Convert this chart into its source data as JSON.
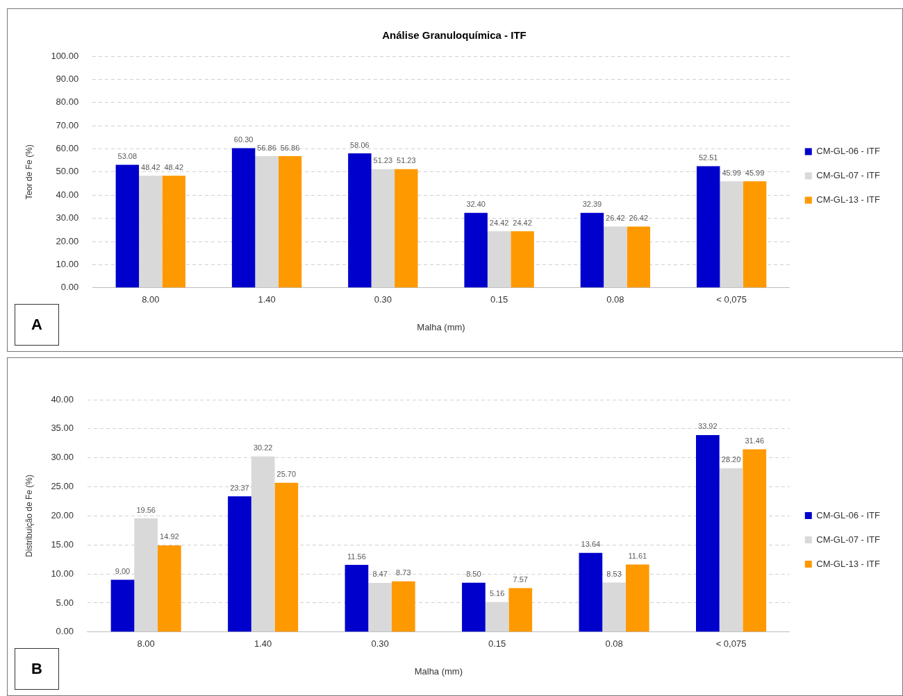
{
  "chart_data": [
    {
      "type": "bar",
      "title": "Análise Granuloquímica - ITF",
      "xlabel": "Malha (mm)",
      "ylabel": "Teor de Fe (%)",
      "categories": [
        "8.00",
        "1.40",
        "0.30",
        "0.15",
        "0.08",
        "< 0,075"
      ],
      "series": [
        {
          "name": "CM-GL-06 - ITF",
          "color": "#0000cc",
          "values": [
            53.08,
            60.3,
            58.06,
            32.4,
            32.39,
            52.51
          ],
          "value_labels": [
            "53.08",
            "60.30",
            "58.06",
            "32.40",
            "32.39",
            "52.51"
          ]
        },
        {
          "name": "CM-GL-07 - ITF",
          "color": "#d9d9d9",
          "values": [
            48.42,
            56.86,
            51.23,
            24.42,
            26.42,
            45.99
          ],
          "value_labels": [
            "48.42",
            "56.86",
            "51.23",
            "24.42",
            "26.42",
            "45.99"
          ]
        },
        {
          "name": "CM-GL-13 - ITF",
          "color": "#ff9900",
          "values": [
            48.42,
            56.86,
            51.23,
            24.42,
            26.42,
            45.99
          ],
          "value_labels": [
            "48.42",
            "56.86",
            "51.23",
            "24.42",
            "26.42",
            "45.99"
          ]
        }
      ],
      "ylim": [
        0,
        100
      ],
      "yticks": [
        {
          "value": 0,
          "label": "0.00"
        },
        {
          "value": 10,
          "label": "10.00"
        },
        {
          "value": 20,
          "label": "20.00"
        },
        {
          "value": 30,
          "label": "30.00"
        },
        {
          "value": 40,
          "label": "40.00"
        },
        {
          "value": 50,
          "label": "50.00"
        },
        {
          "value": 60,
          "label": "60.00"
        },
        {
          "value": 70,
          "label": "70.00"
        },
        {
          "value": 80,
          "label": "80.00"
        },
        {
          "value": 90,
          "label": "90.00"
        },
        {
          "value": 100,
          "label": "100.00"
        }
      ],
      "grid": "y",
      "legend": "right",
      "annotations": [
        "A"
      ]
    },
    {
      "type": "bar",
      "xlabel": "Malha (mm)",
      "ylabel": "Distribuição de Fe (%)",
      "categories": [
        "8.00",
        "1.40",
        "0.30",
        "0.15",
        "0.08",
        "< 0,075"
      ],
      "series": [
        {
          "name": "CM-GL-06 - ITF",
          "color": "#0000cc",
          "values": [
            9.0,
            23.37,
            11.56,
            8.5,
            13.64,
            33.92
          ],
          "value_labels": [
            "9.00",
            "23.37",
            "11.56",
            "8.50",
            "13.64",
            "33.92"
          ]
        },
        {
          "name": "CM-GL-07 - ITF",
          "color": "#d9d9d9",
          "values": [
            19.56,
            30.22,
            8.47,
            5.16,
            8.53,
            28.2
          ],
          "value_labels": [
            "19.56",
            "30.22",
            "8.47",
            "5.16",
            "8.53",
            "28.20"
          ]
        },
        {
          "name": "CM-GL-13 - ITF",
          "color": "#ff9900",
          "values": [
            14.92,
            25.7,
            8.73,
            7.57,
            11.61,
            31.46
          ],
          "value_labels": [
            "14.92",
            "25.70",
            "8.73",
            "7.57",
            "11.61",
            "31.46"
          ]
        }
      ],
      "ylim": [
        0,
        40
      ],
      "yticks": [
        {
          "value": 0,
          "label": "0.00"
        },
        {
          "value": 5,
          "label": "5.00"
        },
        {
          "value": 10,
          "label": "10.00"
        },
        {
          "value": 15,
          "label": "15.00"
        },
        {
          "value": 20,
          "label": "20.00"
        },
        {
          "value": 25,
          "label": "25.00"
        },
        {
          "value": 30,
          "label": "30.00"
        },
        {
          "value": 35,
          "label": "35.00"
        },
        {
          "value": 40,
          "label": "40.00"
        }
      ],
      "grid": "y",
      "legend": "right",
      "annotations": [
        "B"
      ]
    }
  ]
}
